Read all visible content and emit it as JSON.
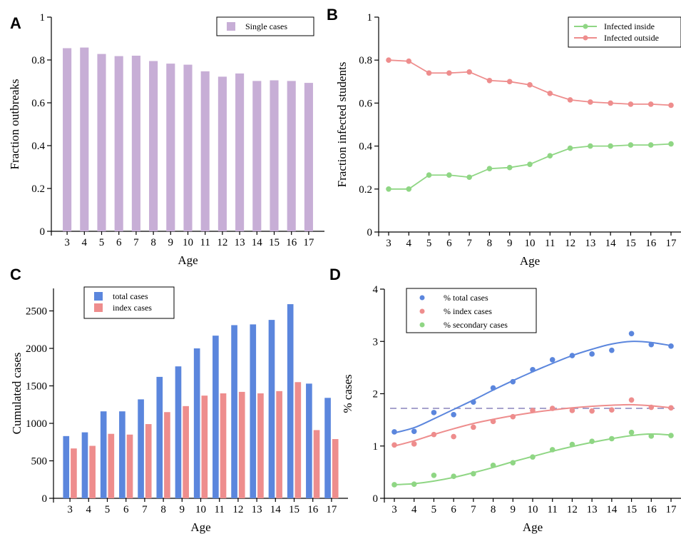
{
  "colors": {
    "purple": "#c7aed6",
    "blue": "#5b86dd",
    "red": "#ee8d8d",
    "green": "#8fd684",
    "dashed": "#a7a2cc"
  },
  "chart_data": [
    {
      "panel": "A",
      "type": "bar",
      "xlabel": "Age",
      "ylabel": "Fraction outbreaks",
      "categories": [
        "3",
        "4",
        "5",
        "6",
        "7",
        "8",
        "9",
        "10",
        "11",
        "12",
        "13",
        "14",
        "15",
        "16",
        "17"
      ],
      "ylim": [
        0,
        1
      ],
      "yticks": [
        "0",
        "0.2",
        "0.4",
        "0.6",
        "0.8",
        "1"
      ],
      "legend_position": "top-right",
      "series": [
        {
          "name": "Single cases",
          "color": "#c7aed6",
          "values": [
            0.855,
            0.858,
            0.828,
            0.818,
            0.82,
            0.795,
            0.783,
            0.778,
            0.747,
            0.722,
            0.737,
            0.702,
            0.705,
            0.702,
            0.693
          ]
        }
      ]
    },
    {
      "panel": "B",
      "type": "line",
      "xlabel": "Age",
      "ylabel": "Fraction infected students",
      "x": [
        3,
        4,
        5,
        6,
        7,
        8,
        9,
        10,
        11,
        12,
        13,
        14,
        15,
        16,
        17
      ],
      "xlim": [
        3,
        17
      ],
      "ylim": [
        0,
        1
      ],
      "yticks": [
        "0",
        "0.2",
        "0.4",
        "0.6",
        "0.8",
        "1"
      ],
      "legend_position": "top-right",
      "series": [
        {
          "name": "Infected inside",
          "color": "#8fd684",
          "values": [
            0.2,
            0.2,
            0.265,
            0.265,
            0.255,
            0.295,
            0.3,
            0.315,
            0.355,
            0.39,
            0.4,
            0.4,
            0.405,
            0.405,
            0.41
          ]
        },
        {
          "name": "Infected outside",
          "color": "#ee8d8d",
          "values": [
            0.8,
            0.795,
            0.74,
            0.74,
            0.745,
            0.705,
            0.7,
            0.685,
            0.645,
            0.615,
            0.605,
            0.6,
            0.595,
            0.595,
            0.59
          ]
        }
      ]
    },
    {
      "panel": "C",
      "type": "bar",
      "xlabel": "Age",
      "ylabel": "Cumulated cases",
      "categories": [
        "3",
        "4",
        "5",
        "6",
        "7",
        "8",
        "9",
        "10",
        "11",
        "12",
        "13",
        "14",
        "15",
        "16",
        "17"
      ],
      "ylim": [
        0,
        2800
      ],
      "yticks": [
        "0",
        "500",
        "1000",
        "1500",
        "2000",
        "2500"
      ],
      "legend_position": "top-left",
      "series": [
        {
          "name": "total cases",
          "color": "#5b86dd",
          "values": [
            830,
            880,
            1160,
            1160,
            1320,
            1620,
            1760,
            2000,
            2170,
            2310,
            2320,
            2380,
            2590,
            1530,
            1340
          ]
        },
        {
          "name": "index cases",
          "color": "#ee8d8d",
          "values": [
            665,
            700,
            860,
            850,
            990,
            1150,
            1230,
            1370,
            1400,
            1420,
            1400,
            1430,
            1550,
            910,
            790
          ]
        }
      ]
    },
    {
      "panel": "D",
      "type": "scatter",
      "xlabel": "Age",
      "ylabel": "% cases",
      "x": [
        3,
        4,
        5,
        6,
        7,
        8,
        9,
        10,
        11,
        12,
        13,
        14,
        15,
        16,
        17
      ],
      "xlim": [
        3,
        17
      ],
      "ylim": [
        0,
        4
      ],
      "yticks": [
        "0",
        "1",
        "2",
        "3",
        "4"
      ],
      "reference_line": 1.72,
      "legend_position": "top-left",
      "series": [
        {
          "name": "% total cases",
          "color": "#5b86dd",
          "values": [
            1.27,
            1.28,
            1.64,
            1.6,
            1.84,
            2.11,
            2.23,
            2.46,
            2.65,
            2.73,
            2.76,
            2.83,
            3.15,
            2.94,
            2.91
          ],
          "fit": [
            1.25,
            1.35,
            1.52,
            1.7,
            1.88,
            2.07,
            2.25,
            2.42,
            2.58,
            2.73,
            2.85,
            2.95,
            3.0,
            2.98,
            2.92
          ]
        },
        {
          "name": "% index cases",
          "color": "#ee8d8d",
          "values": [
            1.02,
            1.04,
            1.22,
            1.18,
            1.36,
            1.47,
            1.56,
            1.68,
            1.72,
            1.68,
            1.67,
            1.69,
            1.88,
            1.74,
            1.73
          ],
          "fit": [
            1.0,
            1.1,
            1.22,
            1.33,
            1.43,
            1.51,
            1.58,
            1.64,
            1.69,
            1.73,
            1.76,
            1.78,
            1.79,
            1.77,
            1.73
          ]
        },
        {
          "name": "% secondary cases",
          "color": "#8fd684",
          "values": [
            0.26,
            0.27,
            0.44,
            0.42,
            0.47,
            0.63,
            0.68,
            0.79,
            0.93,
            1.03,
            1.09,
            1.14,
            1.26,
            1.19,
            1.2
          ],
          "fit": [
            0.26,
            0.28,
            0.33,
            0.4,
            0.49,
            0.59,
            0.7,
            0.8,
            0.9,
            0.99,
            1.07,
            1.14,
            1.2,
            1.23,
            1.21
          ]
        }
      ]
    }
  ]
}
